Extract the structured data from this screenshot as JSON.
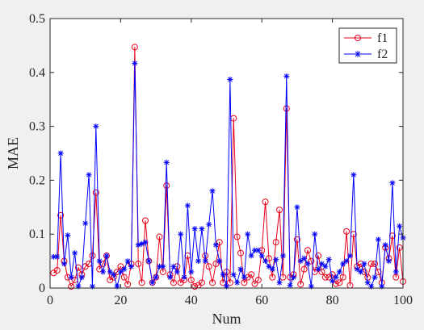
{
  "chart_data": {
    "type": "line",
    "xlabel": "Num",
    "ylabel": "MAE",
    "xlim": [
      0,
      100
    ],
    "ylim": [
      0,
      0.5
    ],
    "xticks": [
      0,
      20,
      40,
      60,
      80,
      100
    ],
    "yticks": [
      0,
      0.1,
      0.2,
      0.3,
      0.4,
      0.5
    ],
    "xtick_labels": [
      "0",
      "20",
      "40",
      "60",
      "80",
      "100"
    ],
    "ytick_labels": [
      "0",
      "0.1",
      "0.2",
      "0.3",
      "0.4",
      "0.5"
    ],
    "grid": false,
    "legend_position": "top-right",
    "x": [
      1,
      2,
      3,
      4,
      5,
      6,
      7,
      8,
      9,
      10,
      11,
      12,
      13,
      14,
      15,
      16,
      17,
      18,
      19,
      20,
      21,
      22,
      23,
      24,
      25,
      26,
      27,
      28,
      29,
      30,
      31,
      32,
      33,
      34,
      35,
      36,
      37,
      38,
      39,
      40,
      41,
      42,
      43,
      44,
      45,
      46,
      47,
      48,
      49,
      50,
      51,
      52,
      53,
      54,
      55,
      56,
      57,
      58,
      59,
      60,
      61,
      62,
      63,
      64,
      65,
      66,
      67,
      68,
      69,
      70,
      71,
      72,
      73,
      74,
      75,
      76,
      77,
      78,
      79,
      80,
      81,
      82,
      83,
      84,
      85,
      86,
      87,
      88,
      89,
      90,
      91,
      92,
      93,
      94,
      95,
      96,
      97,
      98,
      99,
      100
    ],
    "series": [
      {
        "name": "f1",
        "color": "#e8001b",
        "marker": "circle",
        "values": [
          0.028,
          0.033,
          0.135,
          0.05,
          0.02,
          0.003,
          0.015,
          0.038,
          0.025,
          0.04,
          0.045,
          0.06,
          0.177,
          0.035,
          0.045,
          0.06,
          0.015,
          0.02,
          0.03,
          0.04,
          0.02,
          0.007,
          0.045,
          0.447,
          0.045,
          0.01,
          0.125,
          0.05,
          0.01,
          0.02,
          0.095,
          0.03,
          0.19,
          0.025,
          0.01,
          0.04,
          0.01,
          0.015,
          0.06,
          0.015,
          0.003,
          0.005,
          0.01,
          0.06,
          0.04,
          0.01,
          0.045,
          0.085,
          0.01,
          0.03,
          0.01,
          0.315,
          0.095,
          0.065,
          0.01,
          0.02,
          0.025,
          0.008,
          0.015,
          0.07,
          0.16,
          0.055,
          0.02,
          0.085,
          0.145,
          0.02,
          0.333,
          0.02,
          0.025,
          0.09,
          0.007,
          0.035,
          0.07,
          0.05,
          0.03,
          0.06,
          0.03,
          0.02,
          0.02,
          0.025,
          0.008,
          0.01,
          0.02,
          0.105,
          0.005,
          0.1,
          0.04,
          0.045,
          0.03,
          0.02,
          0.045,
          0.045,
          0.03,
          0.01,
          0.075,
          0.055,
          0.097,
          0.02,
          0.075,
          0.012
        ]
      },
      {
        "name": "f2",
        "color": "#0000ff",
        "marker": "asterisk",
        "values": [
          0.058,
          0.058,
          0.25,
          0.045,
          0.098,
          0.02,
          0.065,
          0.003,
          0.02,
          0.12,
          0.21,
          0.003,
          0.3,
          0.05,
          0.03,
          0.06,
          0.03,
          0.025,
          0.003,
          0.03,
          0.035,
          0.05,
          0.04,
          0.417,
          0.08,
          0.082,
          0.085,
          0.05,
          0.01,
          0.02,
          0.04,
          0.04,
          0.233,
          0.02,
          0.04,
          0.03,
          0.1,
          0.02,
          0.153,
          0.03,
          0.11,
          0.05,
          0.11,
          0.05,
          0.118,
          0.18,
          0.08,
          0.05,
          0.025,
          0.003,
          0.387,
          0.025,
          0.01,
          0.035,
          0.02,
          0.1,
          0.06,
          0.07,
          0.07,
          0.06,
          0.05,
          0.04,
          0.035,
          0.053,
          0.01,
          0.06,
          0.393,
          0.005,
          0.02,
          0.15,
          0.05,
          0.055,
          0.045,
          0.003,
          0.1,
          0.035,
          0.045,
          0.04,
          0.053,
          0.013,
          0.02,
          0.03,
          0.045,
          0.05,
          0.06,
          0.21,
          0.035,
          0.03,
          0.045,
          0.01,
          0.003,
          0.02,
          0.09,
          0.003,
          0.08,
          0.05,
          0.195,
          0.03,
          0.115,
          0.093
        ]
      }
    ]
  }
}
